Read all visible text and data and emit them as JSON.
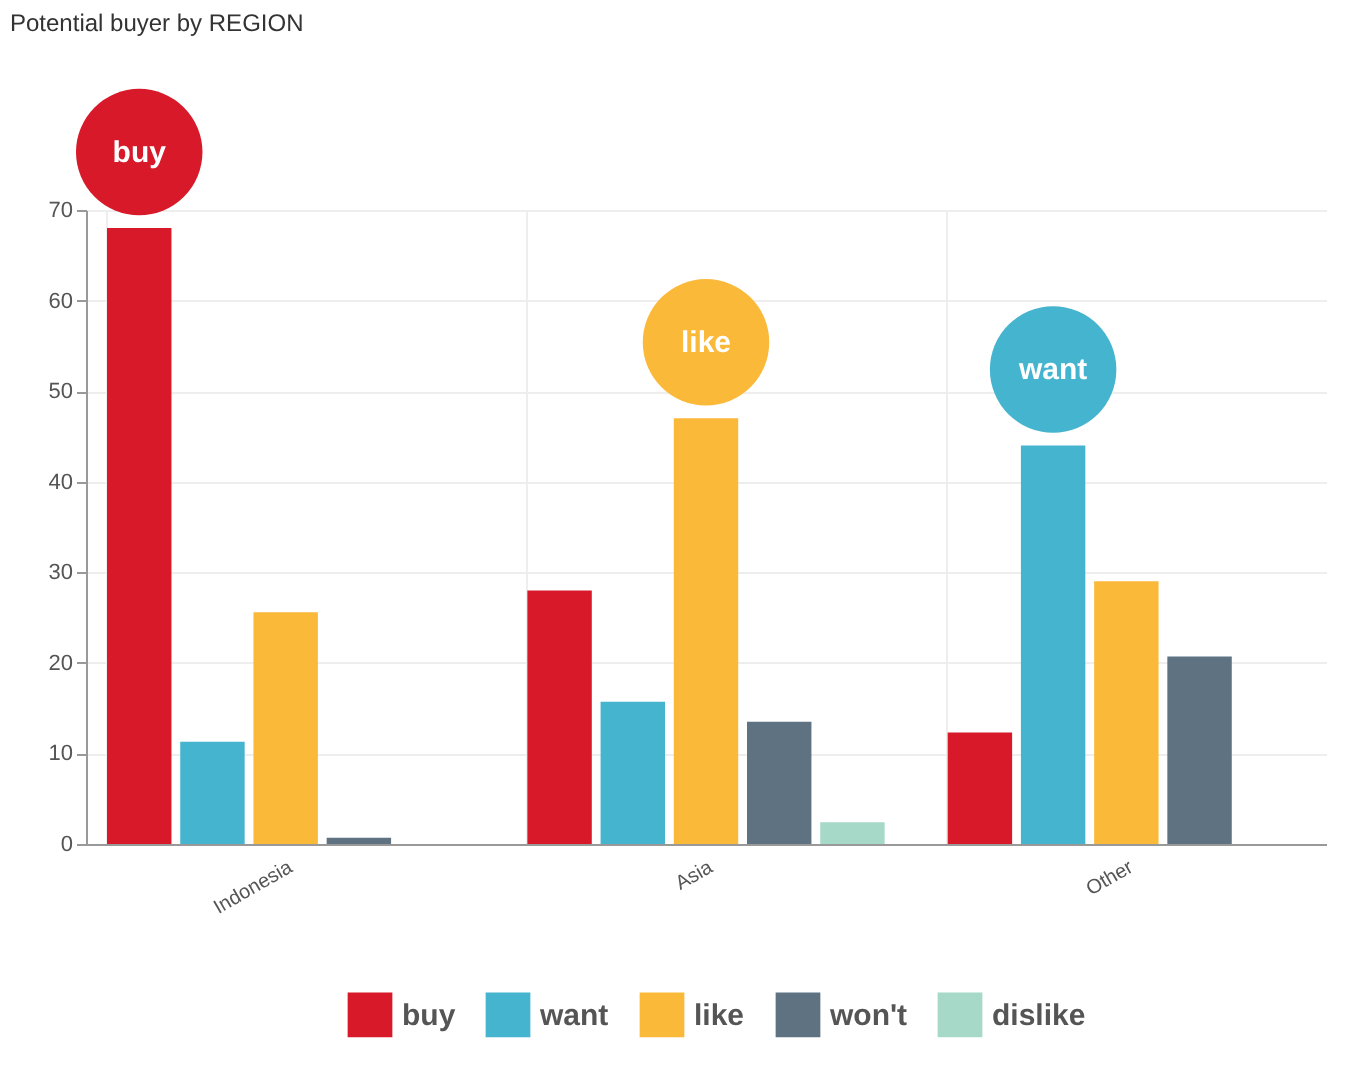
{
  "chart_data": {
    "type": "bar",
    "title": "Potential buyer by REGION",
    "categories": [
      "Indonesia",
      "Asia",
      "Other"
    ],
    "series": [
      {
        "name": "buy",
        "color": "#d7192a",
        "values": [
          68,
          28,
          12.3
        ]
      },
      {
        "name": "want",
        "color": "#45b4cf",
        "values": [
          11.3,
          15.7,
          44
        ]
      },
      {
        "name": "like",
        "color": "#fbb93a",
        "values": [
          25.6,
          47,
          29
        ]
      },
      {
        "name": "won't",
        "color": "#5e7282",
        "values": [
          0.7,
          13.5,
          20.7
        ]
      },
      {
        "name": "dislike",
        "color": "#a6d9c8",
        "values": [
          null,
          2.4,
          null
        ]
      }
    ],
    "annotations": [
      "buy",
      "like",
      "want"
    ],
    "ylim": [
      0,
      70
    ],
    "yticks": [
      0,
      10,
      20,
      30,
      40,
      50,
      60,
      70
    ],
    "grid": true,
    "legend": "bottom"
  }
}
